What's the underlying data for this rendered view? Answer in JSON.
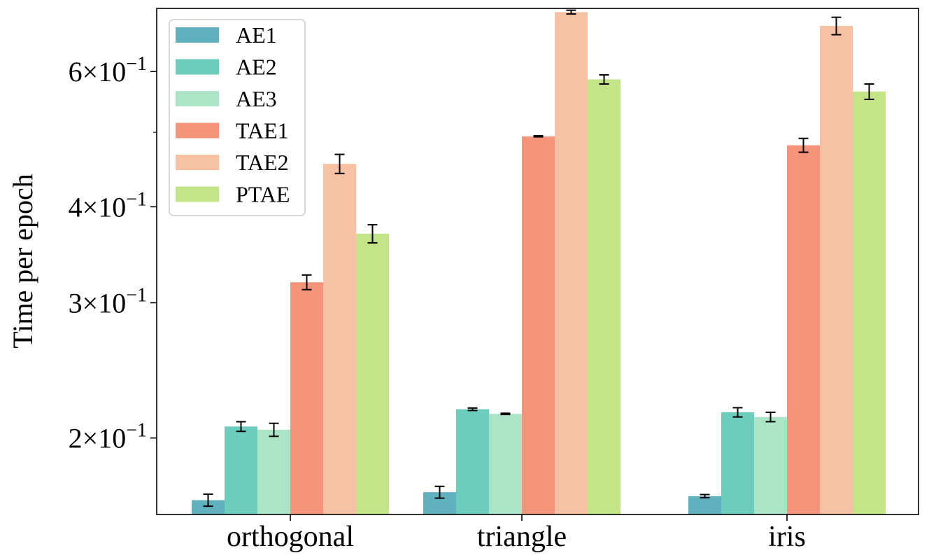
{
  "chart_data": {
    "type": "bar",
    "yscale": "log",
    "ylabel": "Time per epoch",
    "xlabel": "",
    "title": "",
    "categories": [
      "orthogonal",
      "triangle",
      "iris"
    ],
    "ylim": [
      0.159,
      0.725
    ],
    "yticks": [
      {
        "value": 0.2,
        "mantissa": "2",
        "base": "10",
        "exponent": "−1"
      },
      {
        "value": 0.3,
        "mantissa": "3",
        "base": "10",
        "exponent": "−1"
      },
      {
        "value": 0.4,
        "mantissa": "4",
        "base": "10",
        "exponent": "−1"
      },
      {
        "value": 0.6,
        "mantissa": "6",
        "base": "10",
        "exponent": "−1"
      }
    ],
    "times_sign": "×",
    "legend_position": "top-left",
    "series": [
      {
        "name": "AE1",
        "color": "#5fb1be",
        "values": [
          0.166,
          0.17,
          0.168
        ],
        "errors": [
          0.003,
          0.003,
          0.0008
        ]
      },
      {
        "name": "AE2",
        "color": "#6dcdbd",
        "values": [
          0.207,
          0.218,
          0.216
        ],
        "errors": [
          0.003,
          0.0008,
          0.003
        ]
      },
      {
        "name": "AE3",
        "color": "#abe4c6",
        "values": [
          0.205,
          0.215,
          0.213
        ],
        "errors": [
          0.004,
          0.0004,
          0.003
        ]
      },
      {
        "name": "TAE1",
        "color": "#f49479",
        "values": [
          0.319,
          0.494,
          0.481
        ],
        "errors": [
          0.007,
          0.0008,
          0.01
        ]
      },
      {
        "name": "TAE2",
        "color": "#f7c2a4",
        "values": [
          0.455,
          0.717,
          0.688
        ],
        "errors": [
          0.013,
          0.004,
          0.018
        ]
      },
      {
        "name": "PTAE",
        "color": "#c3e588",
        "values": [
          0.369,
          0.586,
          0.565
        ],
        "errors": [
          0.01,
          0.008,
          0.013
        ]
      }
    ]
  }
}
